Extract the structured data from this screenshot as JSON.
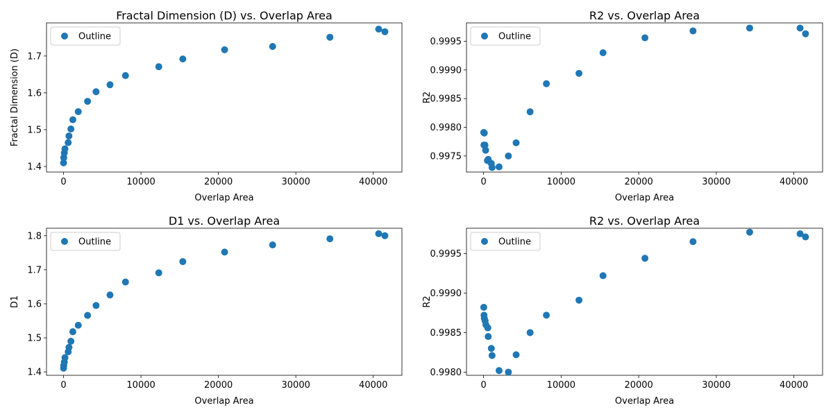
{
  "figure": {
    "marker_color": "#1f77b4"
  },
  "charts": [
    {
      "title": "Fractal Dimension (D) vs. Overlap Area",
      "xlabel": "Overlap Area",
      "ylabel": "Fractal Dimension (D)",
      "legend": "Outline",
      "xticks": [
        "0",
        "10000",
        "20000",
        "30000",
        "40000"
      ],
      "yticks": [
        "1.4",
        "1.5",
        "1.6",
        "1.7"
      ]
    },
    {
      "title": "R2 vs. Overlap Area",
      "xlabel": "Overlap Area",
      "ylabel": "R2",
      "legend": "Outline",
      "xticks": [
        "0",
        "10000",
        "20000",
        "30000",
        "40000"
      ],
      "yticks": [
        "0.9975",
        "0.9980",
        "0.9985",
        "0.9990",
        "0.9995"
      ]
    },
    {
      "title": "D1 vs. Overlap Area",
      "xlabel": "Overlap Area",
      "ylabel": "D1",
      "legend": "Outline",
      "xticks": [
        "0",
        "10000",
        "20000",
        "30000",
        "40000"
      ],
      "yticks": [
        "1.4",
        "1.5",
        "1.6",
        "1.7",
        "1.8"
      ]
    },
    {
      "title": "R2 vs. Overlap Area",
      "xlabel": "Overlap Area",
      "ylabel": "R2",
      "legend": "Outline",
      "xticks": [
        "0",
        "10000",
        "20000",
        "30000",
        "40000"
      ],
      "yticks": [
        "0.9980",
        "0.9985",
        "0.9990",
        "0.9995"
      ]
    }
  ],
  "chart_data": [
    {
      "type": "scatter",
      "title": "Fractal Dimension (D) vs. Overlap Area",
      "xlabel": "Overlap Area",
      "ylabel": "Fractal Dimension (D)",
      "xlim": [
        -2200,
        43700
      ],
      "ylim": [
        1.385,
        1.79
      ],
      "legend": "upper left",
      "series": [
        {
          "name": "Outline",
          "x": [
            0,
            25,
            100,
            180,
            600,
            700,
            950,
            1200,
            1900,
            3100,
            4200,
            6000,
            8000,
            12300,
            15400,
            20800,
            27000,
            34400,
            40700,
            41500
          ],
          "y": [
            1.41,
            1.424,
            1.437,
            1.448,
            1.465,
            1.483,
            1.502,
            1.527,
            1.549,
            1.577,
            1.603,
            1.622,
            1.647,
            1.671,
            1.692,
            1.717,
            1.726,
            1.751,
            1.773,
            1.766
          ]
        }
      ]
    },
    {
      "type": "scatter",
      "title": "R2 vs. Overlap Area",
      "xlabel": "Overlap Area",
      "ylabel": "R2",
      "xlim": [
        -2200,
        43700
      ],
      "ylim": [
        0.99722,
        0.99982
      ],
      "legend": "upper left",
      "series": [
        {
          "name": "Outline",
          "x": [
            25,
            100,
            180,
            50,
            270,
            500,
            600,
            1000,
            1100,
            2000,
            3200,
            4200,
            6000,
            8100,
            12300,
            15400,
            20800,
            27000,
            34300,
            40800,
            41500
          ],
          "y": [
            0.99791,
            0.9979,
            0.99769,
            0.99769,
            0.9976,
            0.99742,
            0.99744,
            0.99737,
            0.9973,
            0.99731,
            0.9975,
            0.99773,
            0.99827,
            0.99876,
            0.99894,
            0.9993,
            0.99956,
            0.99968,
            0.99973,
            0.99973,
            0.99963
          ]
        }
      ]
    },
    {
      "type": "scatter",
      "title": "D1 vs. Overlap Area",
      "xlabel": "Overlap Area",
      "ylabel": "D1",
      "xlim": [
        -2200,
        43700
      ],
      "ylim": [
        1.39,
        1.822
      ],
      "legend": "upper left",
      "series": [
        {
          "name": "Outline",
          "x": [
            0,
            25,
            100,
            180,
            600,
            700,
            950,
            1200,
            1900,
            3100,
            4200,
            6000,
            8000,
            12300,
            15400,
            20800,
            27000,
            34400,
            40700,
            41500
          ],
          "y": [
            1.411,
            1.419,
            1.429,
            1.442,
            1.459,
            1.472,
            1.49,
            1.518,
            1.537,
            1.566,
            1.595,
            1.626,
            1.664,
            1.691,
            1.724,
            1.752,
            1.773,
            1.791,
            1.806,
            1.8
          ]
        }
      ]
    },
    {
      "type": "scatter",
      "title": "R2 vs. Overlap Area",
      "xlabel": "Overlap Area",
      "ylabel": "R2",
      "xlim": [
        -2200,
        43700
      ],
      "ylim": [
        0.99796,
        0.99982
      ],
      "legend": "upper left",
      "series": [
        {
          "name": "Outline",
          "x": [
            25,
            60,
            100,
            200,
            300,
            550,
            600,
            1000,
            1100,
            2000,
            3200,
            4200,
            6000,
            8100,
            12300,
            15400,
            20800,
            27000,
            34300,
            40800,
            41500
          ],
          "y": [
            0.99882,
            0.99872,
            0.99868,
            0.99865,
            0.9986,
            0.99856,
            0.99845,
            0.9983,
            0.99821,
            0.99802,
            0.998,
            0.99822,
            0.9985,
            0.99872,
            0.99891,
            0.99922,
            0.99944,
            0.99965,
            0.99977,
            0.99975,
            0.99971
          ]
        }
      ]
    }
  ]
}
